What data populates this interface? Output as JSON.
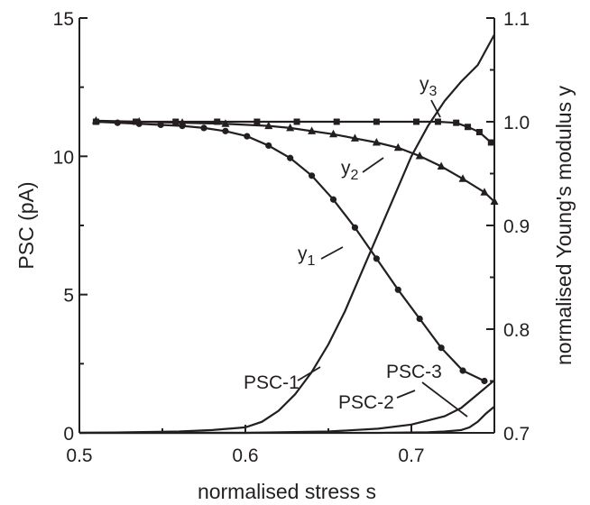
{
  "chart_data": {
    "type": "line",
    "xlabel": "normalised stress  s",
    "ylabel_left": "PSC (pA)",
    "ylabel_right": "normalised Young's modulus  y",
    "xlim": [
      0.5,
      0.75
    ],
    "ylim_left": [
      0,
      15
    ],
    "ylim_right": [
      0.7,
      1.1
    ],
    "xticks": [
      "0.5",
      "0.6",
      "0.7"
    ],
    "xtick_values": [
      0.5,
      0.6,
      0.7
    ],
    "yticks_left": [
      "0",
      "5",
      "10",
      "15"
    ],
    "ytick_values_left": [
      0,
      5,
      10,
      15
    ],
    "yticks_right": [
      "0.7",
      "0.8",
      "0.9",
      "1.0",
      "1.1"
    ],
    "ytick_values_right": [
      0.7,
      0.8,
      0.9,
      1.0,
      1.1
    ],
    "series": [
      {
        "name": "y1",
        "axis": "right",
        "marker": "circle",
        "x": [
          0.51,
          0.523,
          0.536,
          0.549,
          0.562,
          0.575,
          0.588,
          0.601,
          0.614,
          0.627,
          0.64,
          0.653,
          0.666,
          0.679,
          0.692,
          0.705,
          0.718,
          0.731,
          0.744
        ],
        "y": [
          1.0,
          0.999,
          0.998,
          0.997,
          0.996,
          0.994,
          0.991,
          0.986,
          0.977,
          0.965,
          0.948,
          0.925,
          0.898,
          0.868,
          0.838,
          0.81,
          0.782,
          0.76,
          0.75
        ]
      },
      {
        "name": "y2",
        "axis": "right",
        "marker": "triangle",
        "x": [
          0.51,
          0.536,
          0.562,
          0.588,
          0.614,
          0.627,
          0.64,
          0.653,
          0.666,
          0.679,
          0.692,
          0.705,
          0.718,
          0.731,
          0.744,
          0.75
        ],
        "y": [
          1.001,
          1.0,
          0.999,
          0.998,
          0.996,
          0.994,
          0.991,
          0.988,
          0.984,
          0.98,
          0.975,
          0.967,
          0.957,
          0.945,
          0.932,
          0.923
        ]
      },
      {
        "name": "y3",
        "axis": "right",
        "marker": "square",
        "x": [
          0.51,
          0.534,
          0.558,
          0.583,
          0.607,
          0.631,
          0.655,
          0.679,
          0.703,
          0.716,
          0.727,
          0.734,
          0.741,
          0.748
        ],
        "y": [
          1.0,
          1.0,
          1.0,
          1.0,
          1.0,
          1.0,
          1.0,
          1.0,
          1.0,
          1.0,
          0.999,
          0.995,
          0.99,
          0.98
        ]
      },
      {
        "name": "PSC-1",
        "axis": "left",
        "marker": "none",
        "x": [
          0.5,
          0.53,
          0.56,
          0.58,
          0.6,
          0.61,
          0.62,
          0.63,
          0.64,
          0.65,
          0.66,
          0.67,
          0.68,
          0.69,
          0.7,
          0.71,
          0.72,
          0.73,
          0.74,
          0.75
        ],
        "y": [
          0.0,
          0.02,
          0.05,
          0.1,
          0.2,
          0.4,
          0.8,
          1.4,
          2.2,
          3.2,
          4.4,
          5.8,
          7.2,
          8.6,
          10.0,
          11.1,
          12.0,
          12.7,
          13.3,
          14.4
        ]
      },
      {
        "name": "PSC-2",
        "axis": "left",
        "marker": "none",
        "x": [
          0.5,
          0.6,
          0.65,
          0.68,
          0.7,
          0.72,
          0.73,
          0.74,
          0.75
        ],
        "y": [
          0.0,
          0.0,
          0.05,
          0.15,
          0.3,
          0.6,
          0.9,
          1.4,
          1.9
        ]
      },
      {
        "name": "PSC-3",
        "axis": "left",
        "marker": "none",
        "x": [
          0.5,
          0.68,
          0.71,
          0.72,
          0.73,
          0.735,
          0.74,
          0.745,
          0.75
        ],
        "y": [
          0.0,
          0.0,
          0.02,
          0.05,
          0.1,
          0.2,
          0.4,
          0.7,
          0.95
        ]
      }
    ],
    "annotations": [
      {
        "id": "y1",
        "base": "y",
        "sub": "1"
      },
      {
        "id": "y2",
        "base": "y",
        "sub": "2"
      },
      {
        "id": "y3",
        "base": "y",
        "sub": "3"
      },
      {
        "id": "psc1",
        "text": "PSC-1"
      },
      {
        "id": "psc2",
        "text": "PSC-2"
      },
      {
        "id": "psc3",
        "text": "PSC-3"
      }
    ]
  }
}
